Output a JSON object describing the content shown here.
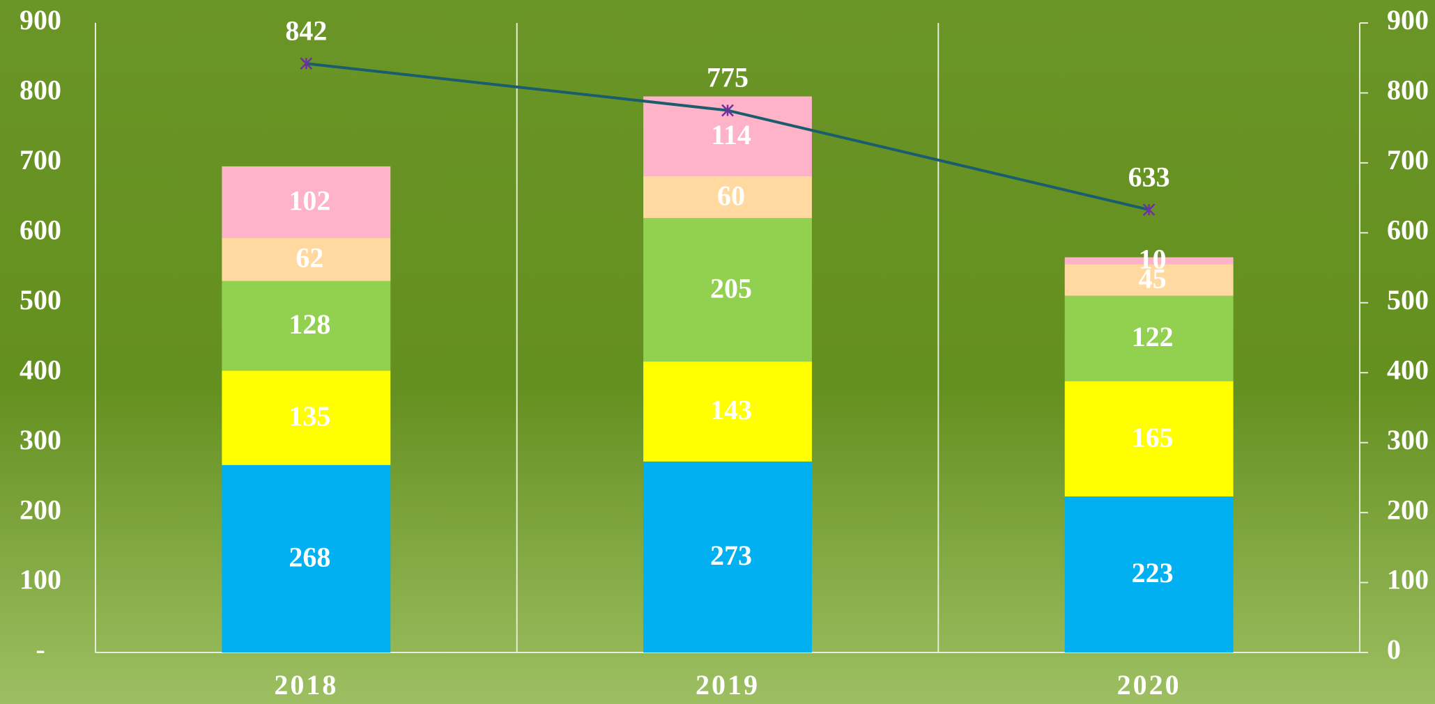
{
  "chart_data": {
    "type": "bar",
    "stacked": true,
    "categories": [
      "2018",
      "2019",
      "2020"
    ],
    "series": [
      {
        "color": "#00b0f0",
        "values": [
          268,
          273,
          223
        ]
      },
      {
        "color": "#ffff00",
        "values": [
          135,
          143,
          165
        ]
      },
      {
        "color": "#92d050",
        "values": [
          128,
          205,
          122
        ]
      },
      {
        "color": "#ffd9a0",
        "values": [
          62,
          60,
          45
        ]
      },
      {
        "color": "#ffb3c8",
        "values": [
          102,
          114,
          10
        ]
      },
      {
        "type": "line",
        "axis": "y2",
        "color": "#1b5c6e",
        "marker_color": "#7030a0",
        "values": [
          842,
          775,
          633
        ]
      }
    ],
    "ylim": [
      0,
      900
    ],
    "yticks": [
      {
        "value": 0,
        "label": "-"
      },
      100,
      200,
      300,
      400,
      500,
      600,
      700,
      800,
      900
    ],
    "y2lim": [
      0,
      900
    ],
    "y2ticks": [
      0,
      100,
      200,
      300,
      400,
      500,
      600,
      700,
      800,
      900
    ]
  }
}
